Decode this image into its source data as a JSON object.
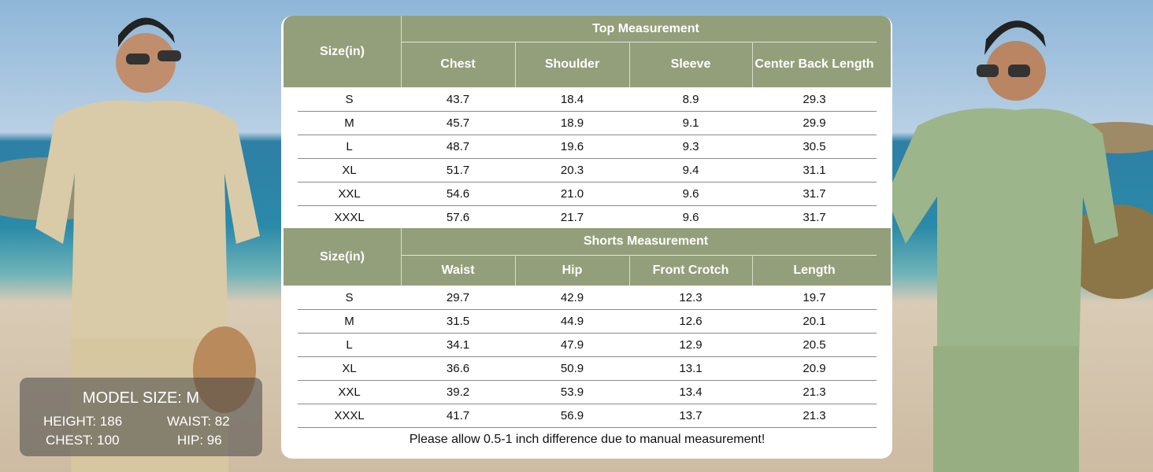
{
  "size_chart": {
    "tables": [
      {
        "size_header": "Size(in)",
        "group_header": "Top Measurement",
        "columns": [
          "Chest",
          "Shoulder",
          "Sleeve",
          "Center Back Length"
        ],
        "rows": [
          [
            "S",
            "43.7",
            "18.4",
            "8.9",
            "29.3"
          ],
          [
            "M",
            "45.7",
            "18.9",
            "9.1",
            "29.9"
          ],
          [
            "L",
            "48.7",
            "19.6",
            "9.3",
            "30.5"
          ],
          [
            "XL",
            "51.7",
            "20.3",
            "9.4",
            "31.1"
          ],
          [
            "XXL",
            "54.6",
            "21.0",
            "9.6",
            "31.7"
          ],
          [
            "XXXL",
            "57.6",
            "21.7",
            "9.6",
            "31.7"
          ]
        ]
      },
      {
        "size_header": "Size(in)",
        "group_header": "Shorts Measurement",
        "columns": [
          "Waist",
          "Hip",
          "Front Crotch",
          "Length"
        ],
        "rows": [
          [
            "S",
            "29.7",
            "42.9",
            "12.3",
            "19.7"
          ],
          [
            "M",
            "31.5",
            "44.9",
            "12.6",
            "20.1"
          ],
          [
            "L",
            "34.1",
            "47.9",
            "12.9",
            "20.5"
          ],
          [
            "XL",
            "36.6",
            "50.9",
            "13.1",
            "20.9"
          ],
          [
            "XXL",
            "39.2",
            "53.9",
            "13.4",
            "21.3"
          ],
          [
            "XXXL",
            "41.7",
            "56.9",
            "13.7",
            "21.3"
          ]
        ]
      }
    ],
    "note": "Please allow 0.5-1 inch difference due to manual measurement!"
  },
  "model": {
    "title": "MODEL SIZE: M",
    "height": "HEIGHT: 186",
    "waist": "WAIST: 82",
    "chest": "CHEST: 100",
    "hip": "HIP: 96"
  }
}
